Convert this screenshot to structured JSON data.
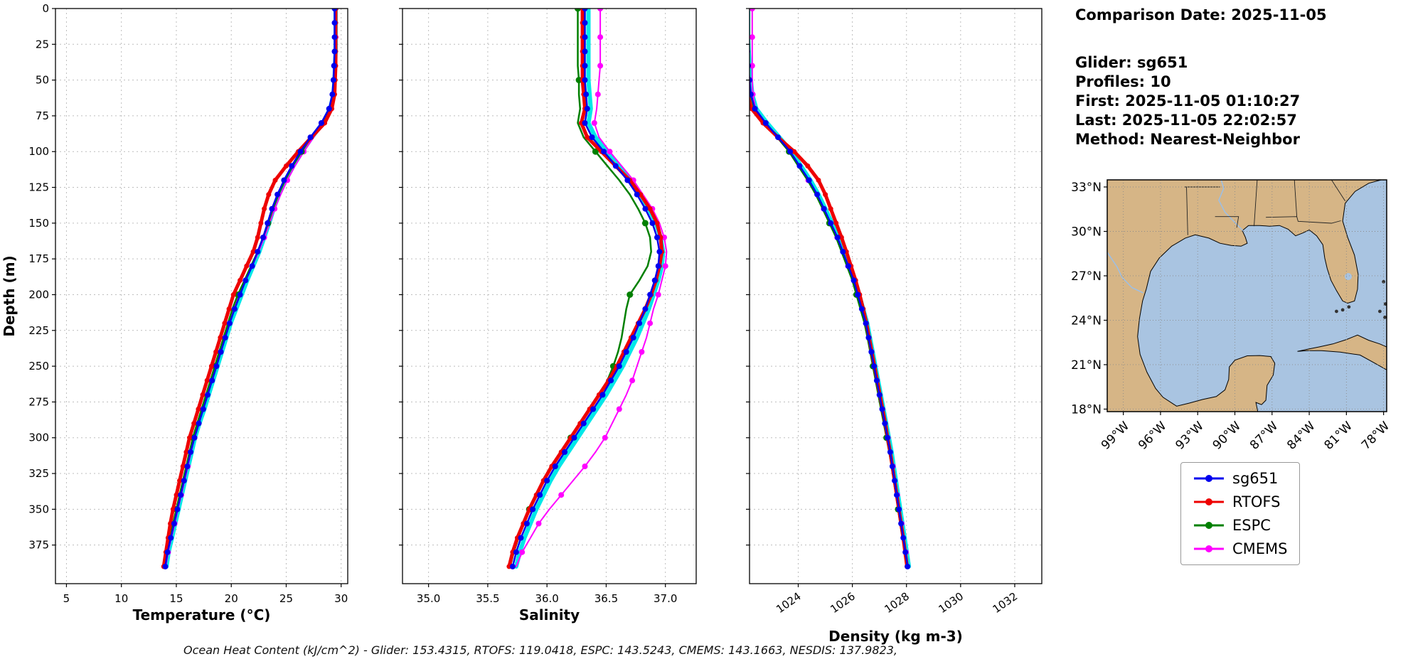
{
  "info_panel": {
    "comparison_date": "Comparison Date: 2025-11-05",
    "glider": "Glider: sg651",
    "profiles": "Profiles: 10",
    "first": "First: 2025-11-05 01:10:27",
    "last": "Last: 2025-11-05 22:02:57",
    "method": "Method: Nearest-Neighbor"
  },
  "caption": "Ocean Heat Content (kJ/cm^2) - Glider: 153.4315,  RTOFS: 119.0418,  ESPC: 143.5243,  CMEMS: 143.1663,  NESDIS: 137.9823,",
  "legend": {
    "position": "right",
    "items": [
      {
        "label": "sg651",
        "color": "#0000ee"
      },
      {
        "label": "RTOFS",
        "color": "#ee0000"
      },
      {
        "label": "ESPC",
        "color": "#008000"
      },
      {
        "label": "CMEMS",
        "color": "#ff00ff"
      }
    ]
  },
  "charts_shared": {
    "ylabel": "Depth (m)",
    "ylim": [
      0,
      402
    ],
    "yticks": [
      0,
      25,
      50,
      75,
      100,
      125,
      150,
      175,
      200,
      225,
      250,
      275,
      300,
      325,
      350,
      375
    ],
    "depths": [
      0,
      10,
      20,
      30,
      40,
      50,
      60,
      70,
      80,
      90,
      100,
      110,
      120,
      130,
      140,
      150,
      160,
      170,
      180,
      190,
      200,
      210,
      220,
      230,
      240,
      250,
      260,
      270,
      280,
      290,
      300,
      310,
      320,
      330,
      340,
      350,
      360,
      370,
      380,
      390
    ]
  },
  "chart_data": [
    {
      "type": "line",
      "name": "temperature-profile-chart",
      "xlabel": "Temperature (°C)",
      "grid": true,
      "xlim": [
        4.0,
        30.6
      ],
      "xticks": [
        5,
        10,
        15,
        20,
        25,
        30
      ],
      "xtick_labels": [
        "5",
        "10",
        "15",
        "20",
        "25",
        "30"
      ],
      "rotate_xtick_labels": false,
      "series": [
        {
          "name": "glider-profiles",
          "color": "#00e8e8",
          "lw": 6,
          "marker_every": 0,
          "marker_r": 0,
          "values": [
            29.5,
            29.5,
            29.5,
            29.5,
            29.45,
            29.4,
            29.3,
            29.0,
            28.35,
            27.35,
            26.45,
            25.65,
            24.95,
            24.35,
            23.85,
            23.45,
            23.0,
            22.55,
            22.0,
            21.45,
            20.95,
            20.45,
            19.95,
            19.55,
            19.15,
            18.75,
            18.35,
            17.95,
            17.55,
            17.1,
            16.7,
            16.4,
            16.1,
            15.8,
            15.5,
            15.2,
            14.9,
            14.6,
            14.3,
            14.1
          ]
        },
        {
          "name": "CMEMS",
          "color": "#ff00ff",
          "lw": 2,
          "marker_every": 2,
          "marker_r": 4,
          "values": [
            29.5,
            29.5,
            29.5,
            29.5,
            29.45,
            29.4,
            29.3,
            29.0,
            28.4,
            27.5,
            26.6,
            25.8,
            25.1,
            24.5,
            23.95,
            23.5,
            23.0,
            22.5,
            21.9,
            21.3,
            20.75,
            20.25,
            19.85,
            19.45,
            19.05,
            18.65,
            18.25,
            17.85,
            17.45,
            17.05,
            16.65,
            16.35,
            16.05,
            15.75,
            15.45,
            15.15,
            14.85,
            14.55,
            14.25,
            14.05
          ]
        },
        {
          "name": "ESPC",
          "color": "#008000",
          "lw": 2.5,
          "marker_every": 5,
          "marker_r": 4.5,
          "values": [
            29.45,
            29.45,
            29.45,
            29.45,
            29.4,
            29.35,
            29.25,
            28.95,
            28.3,
            27.3,
            26.4,
            25.6,
            24.9,
            24.3,
            23.8,
            23.35,
            22.9,
            22.4,
            21.8,
            21.2,
            20.6,
            20.1,
            19.7,
            19.3,
            18.9,
            18.5,
            18.1,
            17.7,
            17.3,
            16.9,
            16.5,
            16.2,
            15.9,
            15.6,
            15.3,
            15.0,
            14.7,
            14.4,
            14.15,
            13.95
          ]
        },
        {
          "name": "RTOFS",
          "color": "#ee0000",
          "lw": 5,
          "marker_every": 1,
          "marker_r": 3.5,
          "values": [
            29.5,
            29.5,
            29.5,
            29.5,
            29.5,
            29.45,
            29.4,
            29.15,
            28.5,
            27.3,
            26.1,
            25.0,
            24.0,
            23.4,
            23.0,
            22.7,
            22.4,
            22.0,
            21.4,
            20.8,
            20.2,
            19.8,
            19.4,
            19.0,
            18.6,
            18.2,
            17.8,
            17.4,
            17.0,
            16.6,
            16.2,
            15.9,
            15.6,
            15.3,
            15.0,
            14.7,
            14.45,
            14.25,
            14.05,
            13.85
          ]
        },
        {
          "name": "sg651",
          "color": "#0000ee",
          "lw": 2.5,
          "marker_every": 1,
          "marker_r": 4,
          "values": [
            29.4,
            29.4,
            29.4,
            29.4,
            29.35,
            29.3,
            29.2,
            28.9,
            28.2,
            27.2,
            26.3,
            25.5,
            24.8,
            24.2,
            23.7,
            23.3,
            22.9,
            22.4,
            21.9,
            21.3,
            20.8,
            20.3,
            19.85,
            19.45,
            19.05,
            18.65,
            18.25,
            17.85,
            17.45,
            17.05,
            16.65,
            16.3,
            16.0,
            15.7,
            15.4,
            15.1,
            14.8,
            14.5,
            14.2,
            14.0
          ]
        }
      ]
    },
    {
      "type": "line",
      "name": "salinity-profile-chart",
      "xlabel": "Salinity",
      "grid": true,
      "xlim": [
        34.78,
        37.26
      ],
      "xticks": [
        35.0,
        35.5,
        36.0,
        36.5,
        37.0
      ],
      "xtick_labels": [
        "35.0",
        "35.5",
        "36.0",
        "36.5",
        "37.0"
      ],
      "rotate_xtick_labels": false,
      "series": [
        {
          "name": "glider-profiles",
          "color": "#00e8e8",
          "lw": 6,
          "marker_every": 0,
          "marker_r": 0,
          "values": [
            36.35,
            36.35,
            36.35,
            36.35,
            36.35,
            36.35,
            36.36,
            36.37,
            36.35,
            36.41,
            36.51,
            36.61,
            36.71,
            36.79,
            36.86,
            36.92,
            36.96,
            36.98,
            36.97,
            36.94,
            36.9,
            36.86,
            36.81,
            36.76,
            36.7,
            36.64,
            36.57,
            36.5,
            36.42,
            36.34,
            36.26,
            36.18,
            36.1,
            36.03,
            35.97,
            35.91,
            35.86,
            35.81,
            35.77,
            35.74
          ]
        },
        {
          "name": "CMEMS",
          "color": "#ff00ff",
          "lw": 2,
          "marker_every": 2,
          "marker_r": 4,
          "values": [
            36.45,
            36.45,
            36.45,
            36.45,
            36.45,
            36.44,
            36.43,
            36.42,
            36.4,
            36.44,
            36.53,
            36.63,
            36.73,
            36.81,
            36.89,
            36.95,
            36.99,
            37.01,
            37.0,
            36.97,
            36.94,
            36.9,
            36.87,
            36.84,
            36.8,
            36.76,
            36.72,
            36.67,
            36.61,
            36.55,
            36.49,
            36.41,
            36.32,
            36.22,
            36.12,
            36.02,
            35.93,
            35.86,
            35.79,
            35.74
          ]
        },
        {
          "name": "ESPC",
          "color": "#008000",
          "lw": 2.5,
          "marker_every": 5,
          "marker_r": 4.5,
          "values": [
            36.26,
            36.26,
            36.26,
            36.26,
            36.26,
            36.27,
            36.27,
            36.28,
            36.26,
            36.31,
            36.41,
            36.51,
            36.61,
            36.7,
            36.77,
            36.83,
            36.87,
            36.88,
            36.85,
            36.78,
            36.7,
            36.67,
            36.65,
            36.63,
            36.6,
            36.56,
            36.51,
            36.44,
            36.36,
            36.28,
            36.2,
            36.12,
            36.04,
            35.97,
            35.91,
            35.85,
            35.8,
            35.76,
            35.72,
            35.69
          ]
        },
        {
          "name": "RTOFS",
          "color": "#ee0000",
          "lw": 5,
          "marker_every": 1,
          "marker_r": 3.5,
          "values": [
            36.3,
            36.3,
            36.3,
            36.3,
            36.3,
            36.3,
            36.31,
            36.32,
            36.29,
            36.34,
            36.46,
            36.58,
            36.7,
            36.79,
            36.87,
            36.93,
            36.96,
            36.97,
            36.95,
            36.92,
            36.88,
            36.83,
            36.77,
            36.71,
            36.65,
            36.59,
            36.52,
            36.44,
            36.36,
            36.28,
            36.2,
            36.12,
            36.04,
            35.97,
            35.91,
            35.85,
            35.8,
            35.75,
            35.71,
            35.68
          ]
        },
        {
          "name": "sg651",
          "color": "#0000ee",
          "lw": 2.5,
          "marker_every": 1,
          "marker_r": 4,
          "values": [
            36.32,
            36.32,
            36.32,
            36.32,
            36.32,
            36.32,
            36.33,
            36.34,
            36.32,
            36.38,
            36.48,
            36.58,
            36.68,
            36.76,
            36.83,
            36.89,
            36.93,
            36.95,
            36.94,
            36.91,
            36.87,
            36.83,
            36.78,
            36.73,
            36.67,
            36.61,
            36.54,
            36.47,
            36.39,
            36.31,
            36.23,
            36.15,
            36.07,
            36.0,
            35.94,
            35.88,
            35.83,
            35.78,
            35.74,
            35.71
          ]
        }
      ]
    },
    {
      "type": "line",
      "name": "density-profile-chart",
      "xlabel": "Density (kg m-3)",
      "grid": true,
      "xlim": [
        1022.2,
        1033.0
      ],
      "xticks": [
        1024,
        1026,
        1028,
        1030,
        1032
      ],
      "xtick_labels": [
        "1024",
        "1026",
        "1028",
        "1030",
        "1032"
      ],
      "rotate_xtick_labels": true,
      "series": [
        {
          "name": "glider-profiles",
          "color": "#00e8e8",
          "lw": 6,
          "marker_every": 0,
          "marker_r": 0,
          "values": [
            1022.15,
            1022.15,
            1022.15,
            1022.17,
            1022.2,
            1022.25,
            1022.3,
            1022.45,
            1022.85,
            1023.3,
            1023.75,
            1024.1,
            1024.45,
            1024.75,
            1025.0,
            1025.25,
            1025.5,
            1025.7,
            1025.9,
            1026.1,
            1026.25,
            1026.4,
            1026.55,
            1026.65,
            1026.75,
            1026.85,
            1026.95,
            1027.05,
            1027.15,
            1027.25,
            1027.35,
            1027.45,
            1027.53,
            1027.61,
            1027.69,
            1027.77,
            1027.85,
            1027.93,
            1028.01,
            1028.09
          ]
        },
        {
          "name": "CMEMS",
          "color": "#ff00ff",
          "lw": 2,
          "marker_every": 2,
          "marker_r": 4,
          "values": [
            1022.3,
            1022.3,
            1022.3,
            1022.3,
            1022.3,
            1022.3,
            1022.32,
            1022.42,
            1022.8,
            1023.25,
            1023.68,
            1024.02,
            1024.37,
            1024.68,
            1024.94,
            1025.19,
            1025.44,
            1025.64,
            1025.84,
            1026.04,
            1026.2,
            1026.35,
            1026.5,
            1026.61,
            1026.71,
            1026.81,
            1026.91,
            1027.01,
            1027.11,
            1027.21,
            1027.31,
            1027.41,
            1027.5,
            1027.58,
            1027.66,
            1027.74,
            1027.82,
            1027.9,
            1027.98,
            1028.06
          ]
        },
        {
          "name": "ESPC",
          "color": "#008000",
          "lw": 2.5,
          "marker_every": 5,
          "marker_r": 4.5,
          "values": [
            1022.08,
            1022.08,
            1022.08,
            1022.1,
            1022.13,
            1022.18,
            1022.23,
            1022.38,
            1022.77,
            1023.22,
            1023.66,
            1024.0,
            1024.35,
            1024.65,
            1024.9,
            1025.15,
            1025.4,
            1025.6,
            1025.8,
            1026.0,
            1026.15,
            1026.3,
            1026.45,
            1026.56,
            1026.66,
            1026.76,
            1026.86,
            1026.96,
            1027.06,
            1027.16,
            1027.26,
            1027.36,
            1027.45,
            1027.53,
            1027.61,
            1027.69,
            1027.77,
            1027.85,
            1027.93,
            1028.0
          ]
        },
        {
          "name": "RTOFS",
          "color": "#ee0000",
          "lw": 5,
          "marker_every": 1,
          "marker_r": 3.5,
          "values": [
            1022.0,
            1022.0,
            1022.0,
            1022.02,
            1022.05,
            1022.08,
            1022.12,
            1022.28,
            1022.7,
            1023.25,
            1023.85,
            1024.35,
            1024.75,
            1025.0,
            1025.2,
            1025.4,
            1025.6,
            1025.78,
            1025.95,
            1026.12,
            1026.27,
            1026.4,
            1026.52,
            1026.62,
            1026.72,
            1026.82,
            1026.92,
            1027.02,
            1027.12,
            1027.22,
            1027.3,
            1027.4,
            1027.48,
            1027.56,
            1027.64,
            1027.72,
            1027.8,
            1027.88,
            1027.95,
            1028.02
          ]
        },
        {
          "name": "sg651",
          "color": "#0000ee",
          "lw": 2.5,
          "marker_every": 1,
          "marker_r": 4,
          "values": [
            1022.1,
            1022.1,
            1022.1,
            1022.12,
            1022.15,
            1022.2,
            1022.25,
            1022.4,
            1022.8,
            1023.25,
            1023.7,
            1024.05,
            1024.4,
            1024.7,
            1024.95,
            1025.2,
            1025.45,
            1025.65,
            1025.85,
            1026.05,
            1026.2,
            1026.35,
            1026.5,
            1026.6,
            1026.7,
            1026.8,
            1026.9,
            1027.0,
            1027.1,
            1027.2,
            1027.3,
            1027.4,
            1027.48,
            1027.56,
            1027.64,
            1027.72,
            1027.8,
            1027.88,
            1027.96,
            1028.04
          ]
        }
      ]
    }
  ],
  "map": {
    "colors": {
      "land": "#d6b586",
      "water": "#a9c4e1"
    },
    "lat_ticks": [
      {
        "value": 33,
        "label": "33°N"
      },
      {
        "value": 30,
        "label": "30°N"
      },
      {
        "value": 27,
        "label": "27°N"
      },
      {
        "value": 24,
        "label": "24°N"
      },
      {
        "value": 21,
        "label": "21°N"
      },
      {
        "value": 18,
        "label": "18°N"
      }
    ],
    "lon_ticks": [
      {
        "value": -99,
        "label": "99°W"
      },
      {
        "value": -96,
        "label": "96°W"
      },
      {
        "value": -93,
        "label": "93°W"
      },
      {
        "value": -90,
        "label": "90°W"
      },
      {
        "value": -87,
        "label": "87°W"
      },
      {
        "value": -84,
        "label": "84°W"
      },
      {
        "value": -81,
        "label": "81°W"
      },
      {
        "value": -78,
        "label": "78°W"
      }
    ]
  }
}
